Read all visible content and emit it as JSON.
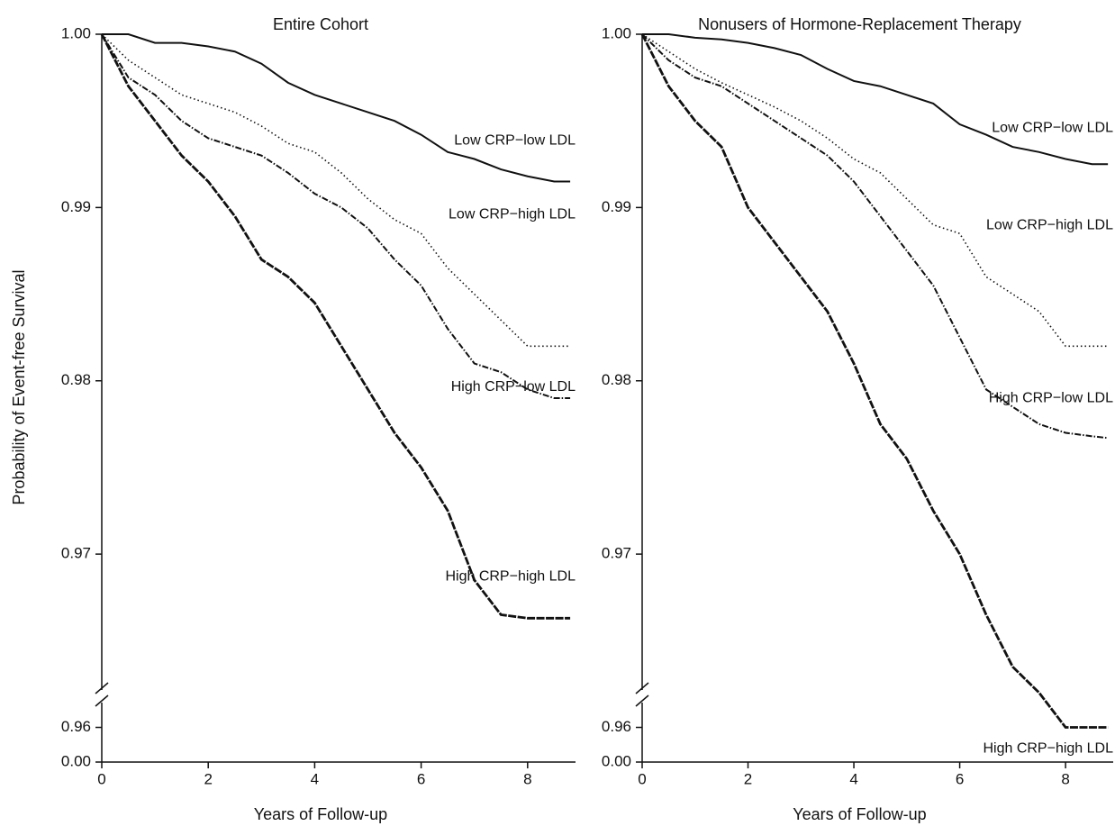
{
  "chart_data": [
    {
      "type": "line",
      "title": "Entire Cohort",
      "y_label": "Probability of Event-free Survival",
      "x_label": "Years of Follow-up",
      "x": [
        0,
        0.5,
        1,
        1.5,
        2,
        2.5,
        3,
        3.5,
        4,
        4.5,
        5,
        5.5,
        6,
        6.5,
        7,
        7.5,
        8,
        8.5,
        8.8
      ],
      "series": [
        {
          "name": "Low CRP−low LDL",
          "color": "#111111",
          "style": "solid",
          "values": [
            1.0,
            1.0,
            0.9995,
            0.9995,
            0.9993,
            0.999,
            0.9983,
            0.9972,
            0.9965,
            0.996,
            0.9955,
            0.995,
            0.9942,
            0.9932,
            0.9928,
            0.9922,
            0.9918,
            0.9915,
            0.9915
          ]
        },
        {
          "name": "Low CRP−high LDL",
          "color": "#111111",
          "style": "dotted",
          "values": [
            1.0,
            0.9985,
            0.9975,
            0.9965,
            0.996,
            0.9955,
            0.9947,
            0.9937,
            0.9932,
            0.992,
            0.9905,
            0.9893,
            0.9885,
            0.9865,
            0.985,
            0.9835,
            0.982,
            0.982,
            0.982
          ]
        },
        {
          "name": "High CRP−low LDL",
          "color": "#111111",
          "style": "dashdot",
          "values": [
            1.0,
            0.9975,
            0.9965,
            0.995,
            0.994,
            0.9935,
            0.993,
            0.992,
            0.9908,
            0.99,
            0.9888,
            0.987,
            0.9855,
            0.983,
            0.981,
            0.9805,
            0.9795,
            0.979,
            0.979
          ]
        },
        {
          "name": "High CRP−high LDL",
          "color": "#111111",
          "style": "dashed",
          "values": [
            1.0,
            0.997,
            0.995,
            0.993,
            0.9915,
            0.9895,
            0.987,
            0.986,
            0.9845,
            0.982,
            0.9795,
            0.977,
            0.975,
            0.9725,
            0.9685,
            0.9665,
            0.9663,
            0.9663,
            0.9663
          ]
        }
      ],
      "xlim": [
        0,
        8.9
      ],
      "xticks": [
        0,
        2,
        4,
        6,
        8
      ],
      "ylim": [
        0.958,
        1.0
      ],
      "y_axis_break": true,
      "yticks": [
        {
          "value": 0,
          "label": "0.00"
        },
        {
          "value": 0.96,
          "label": "0.96"
        },
        {
          "value": 0.97,
          "label": "0.97"
        },
        {
          "value": 0.98,
          "label": "0.98"
        },
        {
          "value": 0.99,
          "label": "0.99"
        },
        {
          "value": 1.0,
          "label": "1.00"
        }
      ],
      "grid": false
    },
    {
      "type": "line",
      "title": "Nonusers of Hormone-Replacement Therapy",
      "x_label": "Years of Follow-up",
      "x": [
        0,
        0.5,
        1,
        1.5,
        2,
        2.5,
        3,
        3.5,
        4,
        4.5,
        5,
        5.5,
        6,
        6.5,
        7,
        7.5,
        8,
        8.5,
        8.8
      ],
      "series": [
        {
          "name": "Low CRP−low LDL",
          "color": "#111111",
          "style": "solid",
          "values": [
            1.0,
            1.0,
            0.9998,
            0.9997,
            0.9995,
            0.9992,
            0.9988,
            0.998,
            0.9973,
            0.997,
            0.9965,
            0.996,
            0.9948,
            0.9942,
            0.9935,
            0.9932,
            0.9928,
            0.9925,
            0.9925
          ]
        },
        {
          "name": "Low CRP−high LDL",
          "color": "#111111",
          "style": "dotted",
          "values": [
            1.0,
            0.999,
            0.998,
            0.9972,
            0.9965,
            0.9958,
            0.995,
            0.994,
            0.9928,
            0.992,
            0.9905,
            0.989,
            0.9885,
            0.986,
            0.985,
            0.984,
            0.982,
            0.982,
            0.982
          ]
        },
        {
          "name": "High CRP−low LDL",
          "color": "#111111",
          "style": "dashdot",
          "values": [
            1.0,
            0.9985,
            0.9975,
            0.997,
            0.996,
            0.995,
            0.994,
            0.993,
            0.9915,
            0.9895,
            0.9875,
            0.9855,
            0.9825,
            0.9795,
            0.9785,
            0.9775,
            0.977,
            0.9768,
            0.9767
          ]
        },
        {
          "name": "High CRP−high LDL",
          "color": "#111111",
          "style": "dashed",
          "values": [
            1.0,
            0.997,
            0.995,
            0.9935,
            0.99,
            0.988,
            0.986,
            0.984,
            0.981,
            0.9775,
            0.9755,
            0.9725,
            0.97,
            0.9665,
            0.9635,
            0.962,
            0.96,
            0.96,
            0.96
          ]
        }
      ],
      "xlim": [
        0,
        8.9
      ],
      "xticks": [
        0,
        2,
        4,
        6,
        8
      ],
      "ylim": [
        0.958,
        1.0
      ],
      "y_axis_break": true,
      "yticks": [
        {
          "value": 0,
          "label": "0.00"
        },
        {
          "value": 0.96,
          "label": "0.96"
        },
        {
          "value": 0.97,
          "label": "0.97"
        },
        {
          "value": 0.98,
          "label": "0.98"
        },
        {
          "value": 0.99,
          "label": "0.99"
        },
        {
          "value": 1.0,
          "label": "1.00"
        }
      ],
      "grid": false
    }
  ]
}
